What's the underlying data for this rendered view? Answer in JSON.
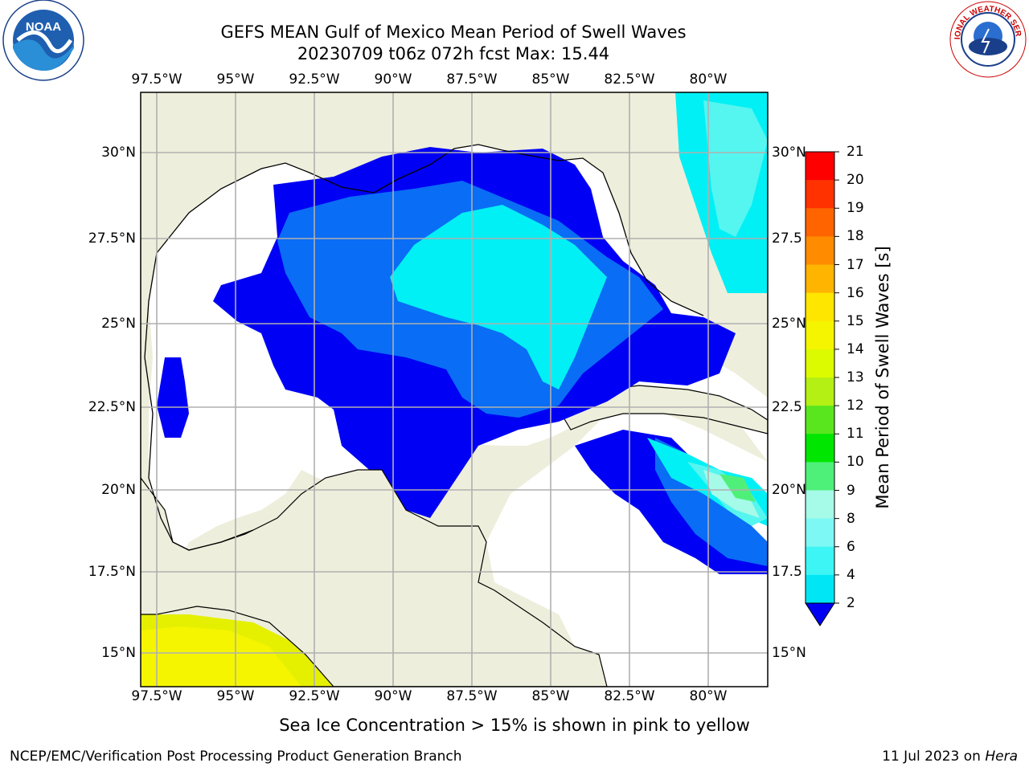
{
  "header": {
    "title_line1": "GEFS MEAN Gulf of Mexico Mean Period of Swell Waves",
    "title_line2": "20230709 t06z 072h fcst   Max: 15.44"
  },
  "logos": {
    "left": {
      "text": "NOAA",
      "ring_text": "NATIONAL OCEANIC AND ATMOSPHERIC ADMINISTRATION · U.S. DEPARTMENT OF COMMERCE"
    },
    "right": {
      "ring_text": "NATIONAL WEATHER SERVICE"
    }
  },
  "map": {
    "lon_labels": [
      "97.5°W",
      "95°W",
      "92.5°W",
      "90°W",
      "87.5°W",
      "85°W",
      "82.5°W",
      "80°W"
    ],
    "lat_labels_left": [
      "30°N",
      "27.5°N",
      "25°N",
      "22.5°N",
      "20°N",
      "17.5°N",
      "15°N"
    ],
    "lat_labels_right": [
      "30°N",
      "27.5",
      "25°N",
      "22.5",
      "20°N",
      "17.5",
      "15°N"
    ],
    "colors": {
      "land": "#eeeedc",
      "ocean_nodata": "#ffffff",
      "grid": "#b0b0b0",
      "coast": "#000000"
    }
  },
  "colorbar": {
    "title": "Mean Period of Swell Waves [s]",
    "ticks": [
      "2",
      "4",
      "6",
      "8",
      "9",
      "10",
      "11",
      "12",
      "13",
      "14",
      "15",
      "16",
      "17",
      "18",
      "19",
      "20",
      "21"
    ],
    "colors": [
      "#0a5df5",
      "#00e6f5",
      "#3df5f5",
      "#7df8f5",
      "#a6fae8",
      "#4ff07a",
      "#00e600",
      "#5ae61e",
      "#b4f014",
      "#dcfa00",
      "#f5f500",
      "#ffe600",
      "#ffb400",
      "#ff8c00",
      "#ff6400",
      "#ff3200",
      "#ff0000"
    ],
    "under_color": "#0000f5"
  },
  "footer": {
    "note": "Sea Ice Concentration > 15% is shown in pink to yellow",
    "credit_left": "NCEP/EMC/Verification Post Processing Product Generation Branch",
    "credit_right_date": "11 Jul 2023 on ",
    "credit_right_host": "Hera"
  }
}
